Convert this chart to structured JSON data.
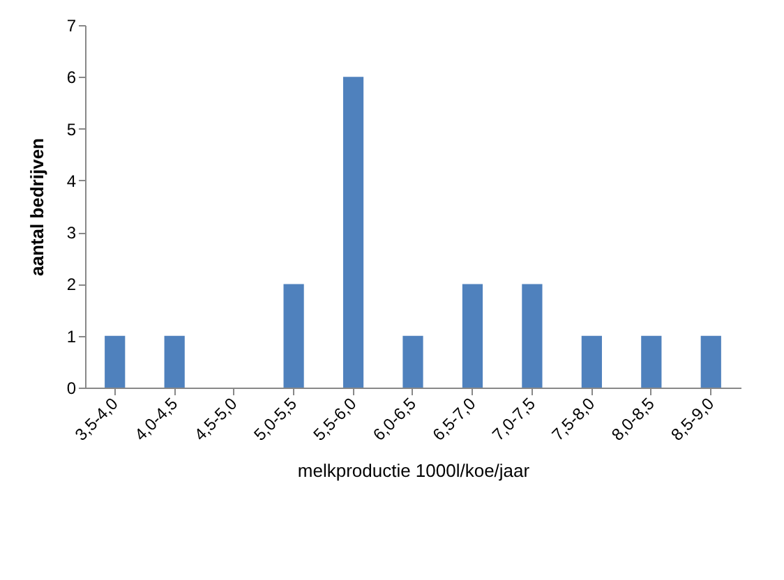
{
  "chart_data": {
    "type": "bar",
    "categories": [
      "3,5-4,0",
      "4,0-4,5",
      "4,5-5,0",
      "5,0-5,5",
      "5,5-6,0",
      "6,0-6,5",
      "6,5-7,0",
      "7,0-7,5",
      "7,5-8,0",
      "8,0-8,5",
      "8,5-9,0"
    ],
    "values": [
      1,
      1,
      0,
      2,
      6,
      1,
      2,
      2,
      1,
      1,
      1
    ],
    "color": "#4f81bd",
    "xlabel": "melkproductie 1000l/koe/jaar",
    "ylabel": "aantal bedrijven",
    "ylim": [
      0,
      7
    ],
    "yticks": [
      0,
      1,
      2,
      3,
      4,
      5,
      6,
      7
    ],
    "grid": false
  }
}
